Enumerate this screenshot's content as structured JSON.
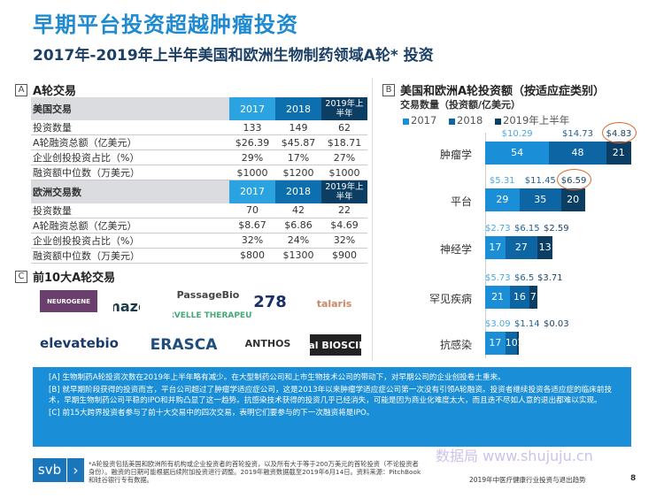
{
  "title": "早期平台投资超越肿瘤投资",
  "subtitle": "2017年-2019年上半年美国和欧洲生物制药领域A轮* 投资",
  "sectionA": {
    "badge": "A",
    "title": "A轮交易",
    "us": {
      "header": "美国交易",
      "cols": [
        "2017",
        "2018",
        "2019年上半年"
      ],
      "rows": [
        {
          "label": "投资数量",
          "values": [
            "133",
            "149",
            "62"
          ]
        },
        {
          "label": "A轮融资总额（亿美元）",
          "values": [
            "$26.39",
            "$45.87",
            "$18.71"
          ]
        },
        {
          "label": "企业创投投资占比（%）",
          "values": [
            "29%",
            "17%",
            "27%"
          ]
        },
        {
          "label": "融资额中位数（万美元）",
          "values": [
            "$1000",
            "$1200",
            "$1000"
          ]
        }
      ]
    },
    "eu": {
      "header": "欧洲交易数",
      "cols": [
        "2017",
        "2018",
        "2019年上半年"
      ],
      "rows": [
        {
          "label": "投资数量",
          "values": [
            "70",
            "42",
            "22"
          ]
        },
        {
          "label": "A轮融资总额（亿美元）",
          "values": [
            "$8.67",
            "$6.86",
            "$4.69"
          ]
        },
        {
          "label": "企业创投投资占比（%）",
          "values": [
            "32%",
            "24%",
            "32%"
          ]
        },
        {
          "label": "融资额中位数（万美元）",
          "values": [
            "$800",
            "$1300",
            "$900"
          ]
        }
      ]
    }
  },
  "sectionC": {
    "badge": "C",
    "title": "前10大A轮交易",
    "logos": [
      "NEUROGENE",
      "maze",
      "PassageBio",
      "ARVELLE THERAPEUTICS",
      "278",
      "talaris",
      "elevatebio",
      "ERASCA",
      "ANTHOS",
      "Arsenal BIOSCIENCES"
    ]
  },
  "sectionB": {
    "badge": "B",
    "title": "美国和欧洲A轮投资额（按适应症类别）",
    "subtitle": "交易数量（投资额/亿美元）"
  },
  "chart_data": {
    "type": "bar",
    "orientation": "horizontal",
    "stacked": true,
    "legend_position": "top",
    "categories": [
      "肿瘤学",
      "平台",
      "神经学",
      "罕见疾病",
      "抗感染"
    ],
    "series": [
      {
        "name": "2017",
        "color": "#1a8ed6",
        "deals": [
          54,
          29,
          17,
          21,
          17
        ],
        "amounts": [
          "$10.29",
          "$5.31",
          "$2.73",
          "$5.73",
          "$3.09"
        ]
      },
      {
        "name": "2018",
        "color": "#0d65a3",
        "deals": [
          48,
          35,
          27,
          16,
          10
        ],
        "amounts": [
          "$14.73",
          "$11.45",
          "$6.15",
          "$6.5",
          "$1.14"
        ]
      },
      {
        "name": "2019年上半年",
        "color": "#0c3e63",
        "deals": [
          21,
          20,
          13,
          7,
          1
        ],
        "amounts": [
          "$4.83",
          "$6.59",
          "$2.59",
          "$3.71",
          "$0.03"
        ]
      }
    ],
    "highlighted": [
      "$4.83",
      "$6.59"
    ],
    "highlight_color": "#e0682c"
  },
  "notes": [
    "[A] 生物制药A轮投资次数在2019年上半年略有减少。在大型制药公司和上市生物技术公司的带动下，对早期公司的企业创投卷土重来。",
    "[B] 就早期阶段获得的投资而言，平台公司超过了肿瘤学适应症公司，这是2013年以来肿瘤学适应症公司第一次没有引领A轮融资。投资者继续投资各适应症的临床前技术，早期生物制药公司平稳的IPO和并购凸显了这一趋势。抗感染技术获得的投资几乎已经消失，可能是因为商业化难度太大，而且迭不尽如人意的退出都难以实现。",
    "[C] 前15大跨界投资者参与了前十大交易中的四次交易，表明它们要参与的下一次融资将是IPO。"
  ],
  "footer": {
    "brand": "svb",
    "footnote": "*A轮投资包括美国和欧洲所有机构或企业投资者的首轮投资，以及所有大于等于200万美元的首轮投资（不论投资者身份）。融资的日期可能根据后续附加投资进行调整。2019年融资数据截至2019年6月14日。资料来源：PitchBook和硅谷银行专有数据。",
    "report": "2019年中医疗健康行业投资与退出趋势",
    "page": "8",
    "watermark": "数据局 www.shujuju.cn"
  }
}
